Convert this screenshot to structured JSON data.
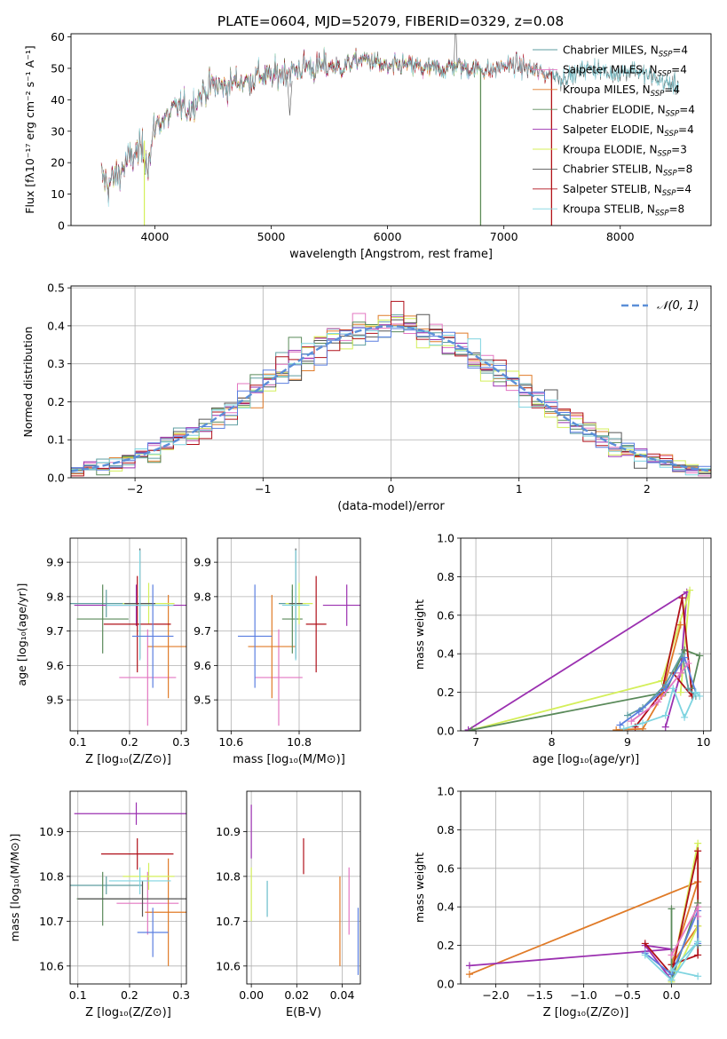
{
  "figure_title": "PLATE=0604, MJD=52079, FIBERID=0329, z=0.08",
  "colors": {
    "Chabrier MILES": "#5f9ea0",
    "Salpeter MILES": "#e377c2",
    "Kroupa MILES": "#e07b28",
    "Chabrier ELODIE": "#5a8a5a",
    "Salpeter ELODIE": "#9b30b0",
    "Kroupa ELODIE": "#d4ef5a",
    "Chabrier STELIB": "#555555",
    "Salpeter STELIB": "#b0101a",
    "Kroupa STELIB": "#7fd4e0",
    "normal": "#5b8fd8",
    "extra_blue": "#5b7fe0"
  },
  "chart_data": [
    {
      "id": "spectrum",
      "type": "line",
      "xlabel": "wavelength [Angstrom, rest frame]",
      "ylabel": "Flux [fλ10⁻¹⁷ erg cm⁻² s⁻¹ A⁻¹]",
      "xlim": [
        3280,
        8780
      ],
      "ylim": [
        0,
        61
      ],
      "xticks": [
        4000,
        5000,
        6000,
        7000,
        8000
      ],
      "yticks": [
        0,
        10,
        20,
        30,
        40,
        50,
        60
      ],
      "grid": false,
      "legend": "upper right",
      "continuum": {
        "x": [
          3540,
          3600,
          3700,
          3800,
          3900,
          3950,
          4000,
          4100,
          4200,
          4300,
          4400,
          4500,
          4600,
          4700,
          4800,
          4900,
          5000,
          5100,
          5200,
          5300,
          5400,
          5500,
          5600,
          5700,
          5800,
          5900,
          6000,
          6100,
          6200,
          6300,
          6400,
          6500,
          6600,
          6700,
          6800,
          6900,
          7000,
          7100,
          7200,
          7300,
          7400,
          7500,
          7600,
          7700,
          7800,
          7900,
          8000,
          8100,
          8200,
          8300,
          8400
        ],
        "y": [
          16,
          13,
          17,
          22,
          24,
          20,
          32,
          34,
          38,
          37,
          42,
          45,
          44,
          46,
          46,
          48,
          47,
          49,
          49,
          51,
          50,
          51,
          50,
          52,
          53,
          52,
          50,
          51,
          51,
          50,
          50,
          50,
          51,
          50,
          50,
          49,
          51,
          51,
          50,
          49,
          48,
          47,
          48,
          50,
          50,
          48,
          49,
          50,
          48,
          47,
          45
        ]
      },
      "series": [
        {
          "name": "Chabrier MILES",
          "nssp": "4",
          "xmax": 8500
        },
        {
          "name": "Salpeter MILES",
          "nssp": "4",
          "xmax": 7400
        },
        {
          "name": "Kroupa MILES",
          "nssp": "4",
          "xmax": 7400
        },
        {
          "name": "Chabrier ELODIE",
          "nssp": "4",
          "xmax": 6800
        },
        {
          "name": "Salpeter ELODIE",
          "nssp": "4",
          "xmax": 6800
        },
        {
          "name": "Kroupa ELODIE",
          "nssp": "3",
          "xmax": 6800
        },
        {
          "name": "Chabrier STELIB",
          "nssp": "8",
          "xmax": 8500
        },
        {
          "name": "Salpeter STELIB",
          "nssp": "4",
          "xmax": 7400
        },
        {
          "name": "Kroupa STELIB",
          "nssp": "8",
          "xmax": 8500
        }
      ],
      "dropouts": [
        {
          "x": 3910,
          "y_top": 27,
          "series": "Kroupa ELODIE"
        },
        {
          "x": 6800,
          "y_top": 50,
          "series": "Kroupa ELODIE"
        },
        {
          "x": 6800,
          "y_top": 50,
          "series": "Chabrier ELODIE"
        },
        {
          "x": 7410,
          "y_top": 49,
          "series": "Kroupa MILES"
        },
        {
          "x": 7410,
          "y_top": 49,
          "series": "Salpeter STELIB"
        }
      ]
    },
    {
      "id": "residuals",
      "type": "histogram",
      "xlabel": "(data-model)/error",
      "ylabel": "Normed distribution",
      "xlim": [
        -2.5,
        2.5
      ],
      "ylim": [
        0,
        0.505
      ],
      "xticks": [
        -2,
        -1,
        0,
        1,
        2
      ],
      "yticks": [
        0.0,
        0.1,
        0.2,
        0.3,
        0.4,
        0.5
      ],
      "grid": true,
      "legend": "upper right",
      "legend_label": "𝒩(0, 1)",
      "bin_width": 0.1,
      "bin_start": -2.5
    },
    {
      "id": "age_vs_Z",
      "type": "errorbar",
      "xlabel": "Z [log₁₀(Z/Z⊙)]",
      "ylabel": "age  [log₁₀(age/yr)]",
      "xlim": [
        0.085,
        0.31
      ],
      "ylim": [
        9.41,
        9.97
      ],
      "xticks": [
        0.1,
        0.2,
        0.3
      ],
      "yticks": [
        9.5,
        9.6,
        9.7,
        9.8,
        9.9
      ],
      "grid": true,
      "points": [
        {
          "s": "Chabrier MILES",
          "x": 0.155,
          "y": 9.78,
          "xe": 0.07,
          "ye": 0.04
        },
        {
          "s": "Salpeter MILES",
          "x": 0.235,
          "y": 9.565,
          "xe": 0.055,
          "ye": 0.14
        },
        {
          "s": "Kroupa MILES",
          "x": 0.275,
          "y": 9.655,
          "xe": 0.04,
          "ye": 0.15
        },
        {
          "s": "Chabrier ELODIE",
          "x": 0.148,
          "y": 9.735,
          "xe": 0.05,
          "ye": 0.1
        },
        {
          "s": "Salpeter ELODIE",
          "x": 0.213,
          "y": 9.775,
          "xe": 0.12,
          "ye": 0.06
        },
        {
          "s": "Kroupa ELODIE",
          "x": 0.237,
          "y": 9.78,
          "xe": 0.05,
          "ye": 0.06
        },
        {
          "s": "Chabrier STELIB",
          "x": 0.22,
          "y": 9.78,
          "xe": 0.03,
          "ye": 0.16
        },
        {
          "s": "Salpeter STELIB",
          "x": 0.215,
          "y": 9.72,
          "xe": 0.065,
          "ye": 0.14
        },
        {
          "s": "Kroupa STELIB",
          "x": 0.22,
          "y": 9.775,
          "xe": 0.065,
          "ye": 0.16
        },
        {
          "s": "extra_blue",
          "x": 0.245,
          "y": 9.685,
          "xe": 0.04,
          "ye": 0.15
        }
      ]
    },
    {
      "id": "age_vs_mass",
      "type": "errorbar",
      "xlabel": "mass [log₁₀(M/M⊙)]",
      "ylabel": "",
      "xlim": [
        10.56,
        10.98
      ],
      "ylim": [
        9.41,
        9.97
      ],
      "xticks": [
        10.6,
        10.8
      ],
      "yticks": [
        9.5,
        9.6,
        9.7,
        9.8,
        9.9
      ],
      "grid": true,
      "points": [
        {
          "s": "Chabrier MILES",
          "x": 10.78,
          "y": 9.78,
          "xe": 0.04,
          "ye": 0.04
        },
        {
          "s": "Salpeter MILES",
          "x": 10.74,
          "y": 9.565,
          "xe": 0.07,
          "ye": 0.14
        },
        {
          "s": "Kroupa MILES",
          "x": 10.72,
          "y": 9.655,
          "xe": 0.07,
          "ye": 0.15
        },
        {
          "s": "Chabrier ELODIE",
          "x": 10.78,
          "y": 9.735,
          "xe": 0.03,
          "ye": 0.1
        },
        {
          "s": "Salpeter ELODIE",
          "x": 10.94,
          "y": 9.775,
          "xe": 0.07,
          "ye": 0.06
        },
        {
          "s": "Kroupa ELODIE",
          "x": 10.8,
          "y": 9.78,
          "xe": 0.04,
          "ye": 0.06
        },
        {
          "s": "Chabrier STELIB",
          "x": 10.79,
          "y": 9.78,
          "xe": 0.02,
          "ye": 0.16
        },
        {
          "s": "Salpeter STELIB",
          "x": 10.85,
          "y": 9.72,
          "xe": 0.03,
          "ye": 0.14
        },
        {
          "s": "Kroupa STELIB",
          "x": 10.79,
          "y": 9.775,
          "xe": 0.04,
          "ye": 0.16
        },
        {
          "s": "extra_blue",
          "x": 10.67,
          "y": 9.685,
          "xe": 0.05,
          "ye": 0.15
        }
      ]
    },
    {
      "id": "weight_vs_age",
      "type": "line",
      "xlabel": "age  [log₁₀(age/yr)]",
      "ylabel": "mass weight",
      "xlim": [
        6.8,
        10.1
      ],
      "ylim": [
        0,
        1.0
      ],
      "xticks": [
        7,
        8,
        9,
        10
      ],
      "yticks": [
        0.0,
        0.2,
        0.4,
        0.6,
        0.8,
        1.0
      ],
      "grid": true,
      "series": [
        {
          "s": "Salpeter ELODIE",
          "x": [
            6.9,
            9.78,
            9.7,
            9.5
          ],
          "y": [
            0.005,
            0.72,
            0.3,
            0.02
          ]
        },
        {
          "s": "Kroupa ELODIE",
          "x": [
            6.95,
            9.45,
            9.82,
            9.7
          ],
          "y": [
            0.005,
            0.26,
            0.73,
            0.2
          ]
        },
        {
          "s": "Chabrier ELODIE",
          "x": [
            6.95,
            9.5,
            9.75,
            9.95,
            9.85
          ],
          "y": [
            0.005,
            0.2,
            0.42,
            0.39,
            0.22
          ]
        },
        {
          "s": "Salpeter STELIB",
          "x": [
            9.1,
            9.45,
            9.72,
            9.85,
            9.6
          ],
          "y": [
            0.02,
            0.2,
            0.69,
            0.18,
            0.3
          ]
        },
        {
          "s": "Kroupa MILES",
          "x": [
            8.85,
            9.2,
            9.45,
            9.7
          ],
          "y": [
            0.005,
            0.01,
            0.18,
            0.55
          ]
        },
        {
          "s": "Chabrier MILES",
          "x": [
            9.0,
            9.2,
            9.5,
            9.72,
            9.8,
            9.9
          ],
          "y": [
            0.08,
            0.12,
            0.24,
            0.4,
            0.22,
            0.18
          ]
        },
        {
          "s": "extra_blue",
          "x": [
            8.9,
            9.15,
            9.5,
            9.75,
            9.9
          ],
          "y": [
            0.03,
            0.1,
            0.22,
            0.38,
            0.2
          ]
        },
        {
          "s": "Kroupa STELIB",
          "x": [
            8.95,
            9.2,
            9.5,
            9.6,
            9.75,
            9.9,
            9.95
          ],
          "y": [
            0.01,
            0.04,
            0.08,
            0.22,
            0.07,
            0.2,
            0.18
          ]
        },
        {
          "s": "Salpeter MILES",
          "x": [
            9.05,
            9.4,
            9.7,
            9.8
          ],
          "y": [
            0.05,
            0.15,
            0.3,
            0.35
          ]
        }
      ]
    },
    {
      "id": "mass_vs_Z",
      "type": "errorbar",
      "xlabel": "Z [log₁₀(Z/Z⊙)]",
      "ylabel": "mass [log₁₀(M/M⊙)]",
      "xlim": [
        0.085,
        0.31
      ],
      "ylim": [
        10.56,
        10.99
      ],
      "xticks": [
        0.1,
        0.2,
        0.3
      ],
      "yticks": [
        10.6,
        10.7,
        10.8,
        10.9
      ],
      "grid": true,
      "points": [
        {
          "s": "Chabrier MILES",
          "x": 0.155,
          "y": 10.78,
          "xe": 0.07,
          "ye": 0.02
        },
        {
          "s": "Salpeter MILES",
          "x": 0.235,
          "y": 10.74,
          "xe": 0.06,
          "ye": 0.07
        },
        {
          "s": "Kroupa MILES",
          "x": 0.275,
          "y": 10.72,
          "xe": 0.045,
          "ye": 0.12
        },
        {
          "s": "Chabrier ELODIE",
          "x": 0.148,
          "y": 10.75,
          "xe": 0.05,
          "ye": 0.06
        },
        {
          "s": "Salpeter ELODIE",
          "x": 0.213,
          "y": 10.94,
          "xe": 0.12,
          "ye": 0.025
        },
        {
          "s": "Kroupa ELODIE",
          "x": 0.237,
          "y": 10.8,
          "xe": 0.05,
          "ye": 0.03
        },
        {
          "s": "Chabrier STELIB",
          "x": 0.225,
          "y": 10.75,
          "xe": 0.125,
          "ye": 0.04
        },
        {
          "s": "Salpeter STELIB",
          "x": 0.215,
          "y": 10.85,
          "xe": 0.07,
          "ye": 0.035
        },
        {
          "s": "Kroupa STELIB",
          "x": 0.22,
          "y": 10.79,
          "xe": 0.06,
          "ye": 0.03
        },
        {
          "s": "extra_blue",
          "x": 0.245,
          "y": 10.675,
          "xe": 0.03,
          "ye": 0.055
        }
      ]
    },
    {
      "id": "mass_vs_ebv",
      "type": "errorbar",
      "xlabel": "E(B-V)",
      "ylabel": "",
      "xlim": [
        -0.002,
        0.048
      ],
      "ylim": [
        10.56,
        10.99
      ],
      "xticks": [
        0.0,
        0.02,
        0.04
      ],
      "yticks": [
        10.6,
        10.7,
        10.8,
        10.9
      ],
      "grid": true,
      "points": [
        {
          "s": "Salpeter ELODIE",
          "x": 0.0,
          "y": 10.9,
          "xe": 0,
          "ye": 0.06
        },
        {
          "s": "Kroupa ELODIE",
          "x": 0.0,
          "y": 10.76,
          "xe": 0,
          "ye": 0.06
        },
        {
          "s": "Chabrier STELIB",
          "x": 0.007,
          "y": 10.75,
          "xe": 0,
          "ye": 0.04
        },
        {
          "s": "Kroupa STELIB",
          "x": 0.007,
          "y": 10.75,
          "xe": 0,
          "ye": 0.04
        },
        {
          "s": "Salpeter STELIB",
          "x": 0.023,
          "y": 10.845,
          "xe": 0,
          "ye": 0.04
        },
        {
          "s": "Kroupa MILES",
          "x": 0.039,
          "y": 10.7,
          "xe": 0,
          "ye": 0.1
        },
        {
          "s": "Salpeter MILES",
          "x": 0.043,
          "y": 10.745,
          "xe": 0,
          "ye": 0.075
        },
        {
          "s": "extra_blue",
          "x": 0.047,
          "y": 10.655,
          "xe": 0,
          "ye": 0.075
        }
      ]
    },
    {
      "id": "weight_vs_Z",
      "type": "line",
      "xlabel": "Z [log₁₀(Z/Z⊙)]",
      "ylabel": "mass weight",
      "xlim": [
        -2.4,
        0.45
      ],
      "ylim": [
        0,
        1.0
      ],
      "xticks": [
        -2.0,
        -1.5,
        -1.0,
        -0.5,
        0.0
      ],
      "yticks": [
        0.0,
        0.2,
        0.4,
        0.6,
        0.8,
        1.0
      ],
      "grid": true,
      "series": [
        {
          "s": "Kroupa MILES",
          "x": [
            -2.3,
            0.3,
            0.0,
            0.3
          ],
          "y": [
            0.05,
            0.53,
            0.1,
            0.3
          ]
        },
        {
          "s": "Salpeter ELODIE",
          "x": [
            -2.3,
            0.0,
            -0.3,
            0.0
          ],
          "y": [
            0.095,
            0.18,
            0.2,
            0.02
          ]
        },
        {
          "s": "Kroupa ELODIE",
          "x": [
            0.0,
            0.3,
            0.3,
            0.0
          ],
          "y": [
            0.05,
            0.73,
            0.3,
            0.01
          ]
        },
        {
          "s": "Salpeter STELIB",
          "x": [
            -0.3,
            0.0,
            0.3,
            0.3,
            0.0
          ],
          "y": [
            0.21,
            0.05,
            0.69,
            0.15,
            0.1
          ]
        },
        {
          "s": "Chabrier ELODIE",
          "x": [
            0.0,
            0.0,
            0.3,
            0.3
          ],
          "y": [
            0.39,
            0.02,
            0.42,
            0.2
          ]
        },
        {
          "s": "extra_blue",
          "x": [
            -0.3,
            0.0,
            0.3,
            0.3
          ],
          "y": [
            0.16,
            0.05,
            0.38,
            0.21
          ]
        },
        {
          "s": "Kroupa STELIB",
          "x": [
            -0.3,
            0.0,
            0.3,
            0.0,
            0.3
          ],
          "y": [
            0.15,
            0.02,
            0.22,
            0.07,
            0.04
          ]
        },
        {
          "s": "Salpeter MILES",
          "x": [
            0.0,
            0.3,
            0.3
          ],
          "y": [
            0.15,
            0.4,
            0.35
          ]
        }
      ]
    }
  ]
}
